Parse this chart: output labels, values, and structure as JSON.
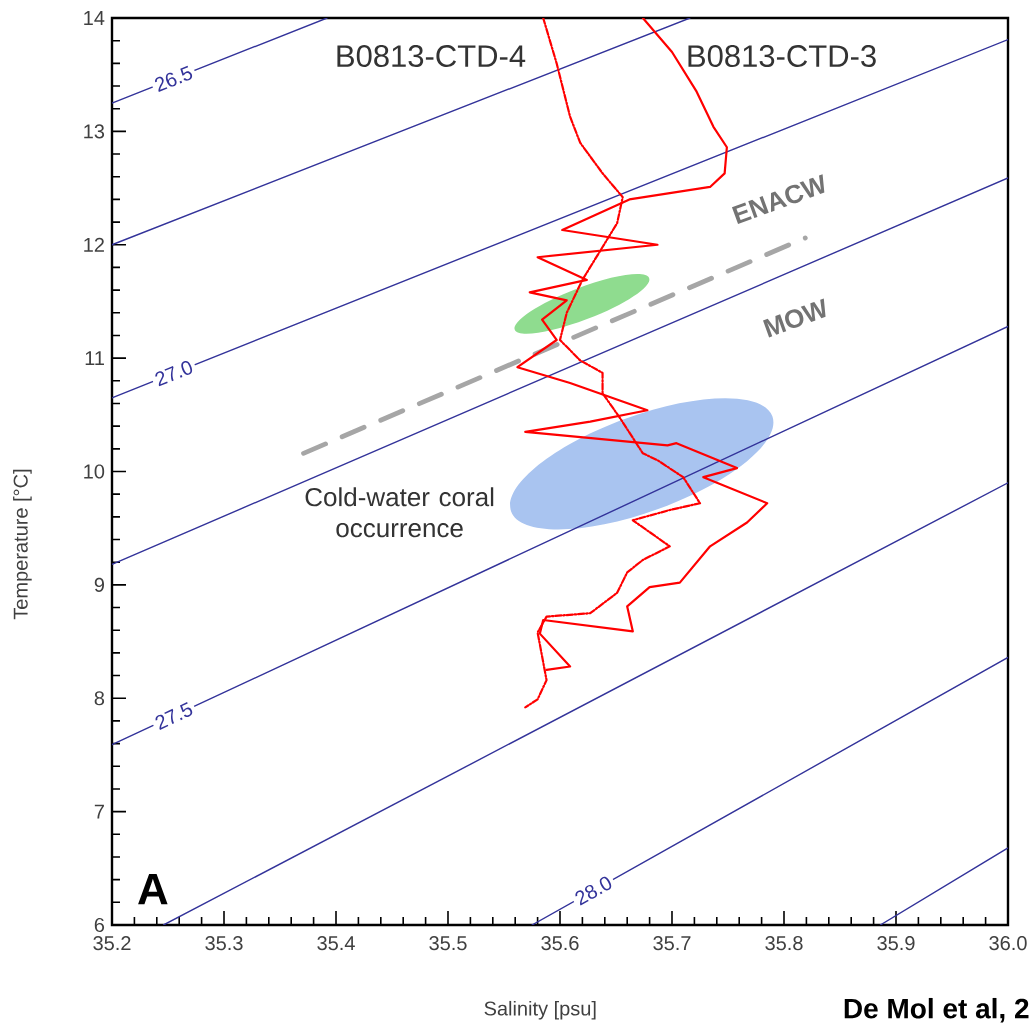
{
  "chart_data": {
    "type": "line",
    "xlabel": "Salinity [psu]",
    "ylabel": "Temperature [°C]",
    "xlim": [
      35.2,
      36.0
    ],
    "ylim": [
      6,
      14
    ],
    "xticks": [
      35.2,
      35.3,
      35.4,
      35.5,
      35.6,
      35.7,
      35.8,
      35.9,
      {
        "value": 36.0,
        "label": "36.0"
      }
    ],
    "yticks": [
      6,
      7,
      8,
      9,
      10,
      11,
      12,
      13,
      14
    ],
    "series": [
      {
        "name": "26.5",
        "color": "#33339a",
        "line_style": "solid",
        "x": [
          35.2,
          35.392
        ],
        "values": [
          13.25,
          14.0
        ]
      },
      {
        "color": "#33339a",
        "line_style": "solid",
        "x": [
          35.2,
          35.716
        ],
        "values": [
          12.0,
          14.0
        ]
      },
      {
        "name": "27.0",
        "color": "#33339a",
        "line_style": "solid",
        "x": [
          35.2,
          36.0
        ],
        "values": [
          10.65,
          13.81
        ]
      },
      {
        "color": "#33339a",
        "line_style": "solid",
        "x": [
          35.2,
          36.0
        ],
        "values": [
          9.18,
          12.59
        ]
      },
      {
        "name": "27.5",
        "color": "#33339a",
        "line_style": "solid",
        "x": [
          35.2,
          36.0
        ],
        "values": [
          7.59,
          11.28
        ]
      },
      {
        "color": "#33339a",
        "line_style": "solid",
        "x": [
          35.246,
          36.0
        ],
        "values": [
          6.0,
          9.9
        ]
      },
      {
        "name": "28.0",
        "color": "#33339a",
        "line_style": "solid",
        "x": [
          35.575,
          36.0
        ],
        "values": [
          6.0,
          8.36
        ]
      },
      {
        "color": "#33339a",
        "line_style": "solid",
        "x": [
          35.886,
          36.0
        ],
        "values": [
          6.0,
          6.68
        ]
      },
      {
        "color": "#a6a6a6",
        "line_style": "dashed",
        "x": [
          35.371,
          35.819
        ],
        "values": [
          10.16,
          12.06
        ]
      },
      {
        "name": "B0813-CTD-4",
        "color": "#ff0000",
        "line_style": "dotted",
        "x": [
          35.585,
          35.597,
          35.609,
          35.618,
          35.638,
          35.656,
          35.651,
          35.638,
          35.62,
          35.606,
          35.6,
          35.618,
          35.638,
          35.638,
          35.653,
          35.674,
          35.687,
          35.71,
          35.725,
          35.698,
          35.665,
          35.698,
          35.674,
          35.66,
          35.651,
          35.627,
          35.588,
          35.58,
          35.584,
          35.588,
          35.58,
          35.569
        ],
        "values": [
          14.0,
          13.6,
          13.13,
          12.9,
          12.63,
          12.42,
          12.19,
          11.98,
          11.69,
          11.4,
          11.16,
          10.98,
          10.87,
          10.69,
          10.48,
          10.16,
          10.1,
          9.95,
          9.72,
          9.66,
          9.57,
          9.34,
          9.22,
          9.11,
          8.93,
          8.75,
          8.72,
          8.58,
          8.37,
          8.16,
          7.99,
          7.92
        ]
      },
      {
        "name": "B0813-CTD-3",
        "color": "#ff0000",
        "line_style": "solid",
        "x": [
          35.674,
          35.7,
          35.722,
          35.737,
          35.749,
          35.747,
          35.734,
          35.662,
          35.602,
          35.687,
          35.58,
          35.624,
          35.573,
          35.606,
          35.584,
          35.597,
          35.562,
          35.609,
          35.678,
          35.627,
          35.569,
          35.696,
          35.704,
          35.758,
          35.728,
          35.785,
          35.767,
          35.734,
          35.707,
          35.68,
          35.66,
          35.665,
          35.585,
          35.582,
          35.609,
          35.588
        ],
        "values": [
          14.0,
          13.7,
          13.35,
          13.04,
          12.86,
          12.63,
          12.51,
          12.4,
          12.13,
          12.0,
          11.89,
          11.69,
          11.58,
          11.51,
          11.34,
          11.16,
          10.92,
          10.78,
          10.54,
          10.44,
          10.35,
          10.23,
          10.25,
          10.03,
          9.95,
          9.72,
          9.55,
          9.34,
          9.02,
          8.98,
          8.81,
          8.59,
          8.69,
          8.57,
          8.28,
          8.25
        ]
      }
    ],
    "annotations": [
      "ENACW",
      "MOW",
      "Cold-water coral occurrence",
      "A",
      "De Mol et al, 2"
    ]
  }
}
